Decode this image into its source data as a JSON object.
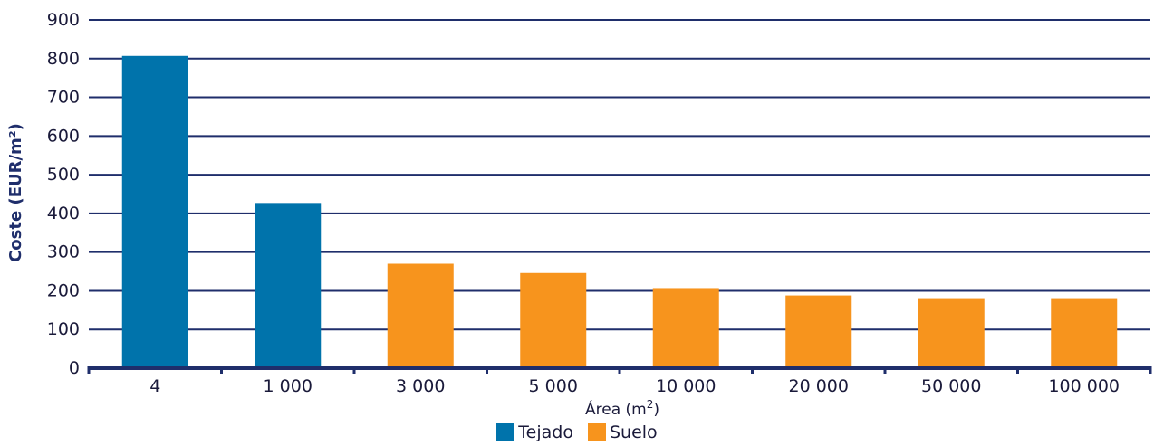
{
  "chart_data": {
    "type": "bar",
    "categories": [
      "4",
      "1 000",
      "3 000",
      "5 000",
      "10 000",
      "20 000",
      "50 000",
      "100 000"
    ],
    "series": [
      {
        "name": "Tejado",
        "values": [
          807,
          427,
          null,
          null,
          null,
          null,
          null,
          null
        ],
        "color": "#0073ab"
      },
      {
        "name": "Suelo",
        "values": [
          null,
          null,
          270,
          246,
          207,
          188,
          181,
          181
        ],
        "color": "#f7941d"
      }
    ],
    "xlabel_main": "Área (m",
    "xlabel_sup": "2",
    "xlabel_end": ")",
    "ylabel": "Coste (EUR/m²)",
    "ylim": [
      0,
      900
    ],
    "yticks": [
      "0",
      "100",
      "200",
      "300",
      "400",
      "500",
      "600",
      "700",
      "800",
      "900"
    ],
    "grid": true,
    "legend_position": "bottom-center"
  }
}
